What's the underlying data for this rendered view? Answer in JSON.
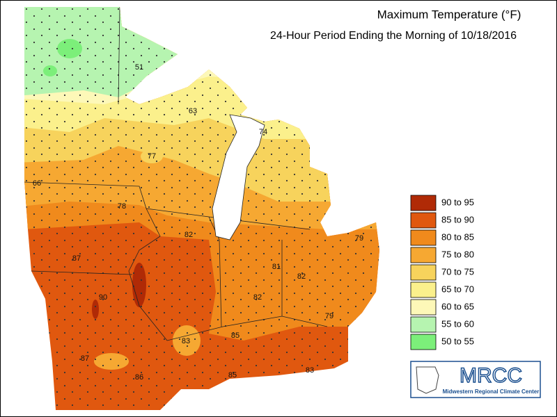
{
  "header": {
    "title": "Maximum Temperature (°F)",
    "subtitle": "24-Hour Period Ending the Morning of 10/18/2016"
  },
  "legend": {
    "items": [
      {
        "label": "90 to 95",
        "color": "#b02a06"
      },
      {
        "label": "85 to 90",
        "color": "#e0580f"
      },
      {
        "label": "80 to 85",
        "color": "#f08a1c"
      },
      {
        "label": "75 to 80",
        "color": "#f6a832"
      },
      {
        "label": "70 to 75",
        "color": "#f7d35c"
      },
      {
        "label": "65 to 70",
        "color": "#fbf08c"
      },
      {
        "label": "60 to 65",
        "color": "#fdf8b8"
      },
      {
        "label": "55 to 60",
        "color": "#b6f4b0"
      },
      {
        "label": "50 to 55",
        "color": "#7cef7a"
      }
    ]
  },
  "map": {
    "labels": [
      51,
      63,
      74,
      77,
      66,
      78,
      82,
      87,
      90,
      81,
      82,
      82,
      79,
      79,
      83,
      85,
      87,
      86,
      85,
      83
    ]
  },
  "logo": {
    "title": "MRCC",
    "subtitle": "Midwestern Regional Climate Center"
  }
}
